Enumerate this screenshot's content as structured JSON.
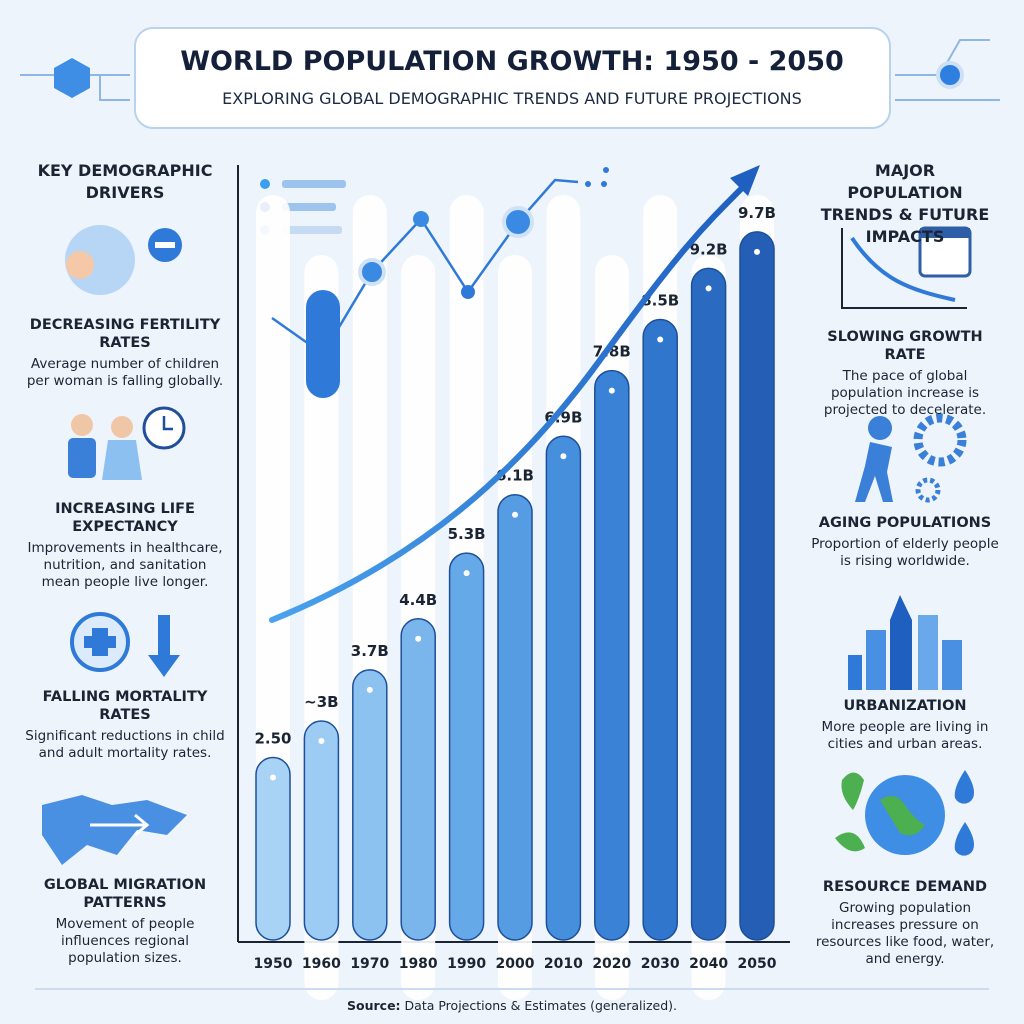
{
  "chart_data": {
    "type": "bar",
    "title": "WORLD POPULATION GROWTH: 1950 - 2050",
    "subtitle": "EXPLORING GLOBAL DEMOGRAPHIC TRENDS AND FUTURE PROJECTIONS",
    "categories": [
      "1950",
      "1960",
      "1970",
      "1980",
      "1990",
      "2000",
      "2010",
      "2020",
      "2030",
      "2040",
      "2050"
    ],
    "values": [
      2.5,
      3,
      3.7,
      4.4,
      5.3,
      6.1,
      6.9,
      7.8,
      8.5,
      9.2,
      9.7
    ],
    "value_labels": [
      "2.50",
      "~3B",
      "3.7B",
      "4.4B",
      "5.3B",
      "6.1B",
      "6.9B",
      "7.8B",
      "8.5B",
      "9.2B",
      "9.7B"
    ],
    "colors": [
      "#a9d3f5",
      "#9ccbf3",
      "#8cc2f0",
      "#7ab6ec",
      "#66a9e8",
      "#559ce3",
      "#468fdd",
      "#3a82d6",
      "#3076cc",
      "#2a6bc1",
      "#255fb5"
    ]
  },
  "left_panel": {
    "heading": "KEY DEMOGRAPHIC DRIVERS",
    "items": [
      {
        "title": "DECREASING FERTILITY RATES",
        "text": "Average number of children per woman is falling globally."
      },
      {
        "title": "INCREASING LIFE EXPECTANCY",
        "text": "Improvements in healthcare, nutrition, and sanitation mean people live longer."
      },
      {
        "title": "FALLING MORTALITY RATES",
        "text": "Significant reductions in child and adult mortality rates."
      },
      {
        "title": "GLOBAL MIGRATION PATTERNS",
        "text": "Movement of people influences regional population sizes."
      }
    ]
  },
  "right_panel": {
    "heading": "MAJOR POPULATION TRENDS & FUTURE IMPACTS",
    "items": [
      {
        "title": "SLOWING GROWTH RATE",
        "text": "The pace of global population increase is projected to decelerate."
      },
      {
        "title": "AGING POPULATIONS",
        "text": "Proportion of elderly people is rising worldwide."
      },
      {
        "title": "URBANIZATION",
        "text": "More people are living in cities and urban areas."
      },
      {
        "title": "RESOURCE DEMAND",
        "text": "Growing population increases pressure on resources like food, water, and energy."
      }
    ]
  },
  "source": {
    "label": "Source:",
    "text": "Data Projections & Estimates (generalized)."
  }
}
